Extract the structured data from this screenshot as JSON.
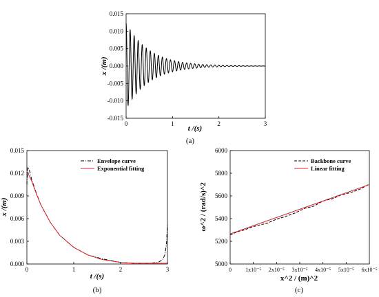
{
  "chart_data": [
    {
      "id": "a",
      "type": "line",
      "caption": "(a)",
      "xlabel": "t /(s)",
      "ylabel": "x /(m)",
      "xlim": [
        0,
        3
      ],
      "ylim": [
        -0.015,
        0.015
      ],
      "xticks": [
        "0",
        "1",
        "2",
        "3"
      ],
      "yticks": [
        "-0.015",
        "-0.010",
        "-0.005",
        "0.000",
        "0.005",
        "0.010",
        "0.015"
      ],
      "signal": {
        "amplitude": 0.0123,
        "decay_rate": 2.0,
        "frequency_hz": 11.5
      },
      "series": [
        {
          "color": "#000000"
        }
      ]
    },
    {
      "id": "b",
      "type": "line",
      "caption": "(b)",
      "xlabel": "t /(s)",
      "ylabel": "x /(m)",
      "xlim": [
        0,
        3
      ],
      "ylim": [
        0,
        0.015
      ],
      "xticks": [
        "0",
        "1",
        "2",
        "3"
      ],
      "yticks": [
        "0.000",
        "0.003",
        "0.006",
        "0.009",
        "0.012",
        "0.015"
      ],
      "legend": "top-right",
      "series": [
        {
          "name": "Envelope curve",
          "style": "dash-dot",
          "color": "#000000",
          "x": [
            0.0,
            0.02,
            0.05,
            0.1,
            0.2,
            0.3,
            0.5,
            0.7,
            1.0,
            1.3,
            1.6,
            2.0,
            2.3,
            2.6,
            2.8,
            2.9,
            2.95,
            2.98,
            3.0
          ],
          "y": [
            0.0105,
            0.0128,
            0.0125,
            0.0112,
            0.0094,
            0.0078,
            0.0055,
            0.0038,
            0.0022,
            0.0012,
            0.0007,
            0.0002,
            0.0001,
            0.0001,
            0.0002,
            0.0006,
            0.0013,
            0.0028,
            0.0052
          ]
        },
        {
          "name": "Exponential fitting",
          "style": "solid",
          "color": "#d8282f",
          "x": [
            0.0,
            0.1,
            0.2,
            0.3,
            0.5,
            0.7,
            1.0,
            1.3,
            1.6,
            2.0,
            2.3,
            2.6,
            3.0
          ],
          "y": [
            0.0123,
            0.011,
            0.0093,
            0.0078,
            0.0055,
            0.0038,
            0.0022,
            0.0012,
            0.0006,
            0.0002,
            0.0001,
            0.0001,
            0.0001
          ]
        }
      ]
    },
    {
      "id": "c",
      "type": "line",
      "caption": "(c)",
      "xlabel": "x^2 / (m)^2",
      "ylabel": "ω^2 / (rad/s)^2",
      "xlim": [
        0,
        6
      ],
      "ylim": [
        5000,
        6000
      ],
      "x_unit_note": "x values in units of 10^-5",
      "xticks": [
        "0",
        "1x10⁻⁵",
        "2x10⁻⁵",
        "3x10⁻⁵",
        "4x10⁻⁵",
        "5x10⁻⁵",
        "6x10⁻⁵"
      ],
      "yticks": [
        "5000",
        "5200",
        "5400",
        "5600",
        "5800",
        "6000"
      ],
      "legend": "top-right",
      "series": [
        {
          "name": "Backbone curve",
          "style": "dashed",
          "color": "#000000",
          "x": [
            0.0,
            0.2,
            0.4,
            0.6,
            0.8,
            1.0,
            1.3,
            1.6,
            2.0,
            2.4,
            2.8,
            3.2,
            3.6,
            4.0,
            4.4,
            4.8,
            5.2,
            5.6,
            6.0
          ],
          "y": [
            5255,
            5275,
            5290,
            5300,
            5315,
            5330,
            5345,
            5360,
            5395,
            5420,
            5450,
            5490,
            5510,
            5555,
            5575,
            5610,
            5630,
            5660,
            5705
          ]
        },
        {
          "name": "Linear fitting",
          "style": "solid",
          "color": "#d8282f",
          "x": [
            0.0,
            6.0
          ],
          "y": [
            5265,
            5700
          ]
        }
      ]
    }
  ]
}
